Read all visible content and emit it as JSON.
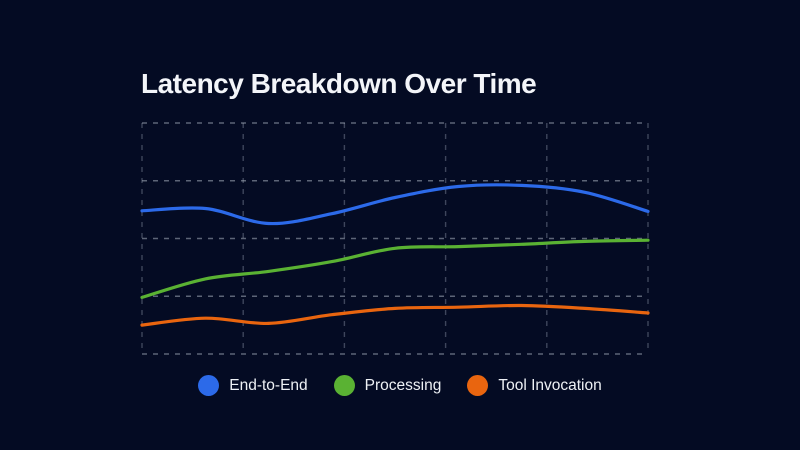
{
  "chart_data": {
    "type": "line",
    "title": "Latency Breakdown Over Time",
    "x": [
      1,
      2,
      3,
      4,
      5,
      6,
      7,
      8,
      9
    ],
    "xlabel": "",
    "ylabel": "",
    "x_tick_labels_visible": false,
    "y_tick_labels_visible": false,
    "ylim": [
      0,
      4
    ],
    "y_units": "gridline intervals (axis is unlabeled in the image)",
    "smoothing": true,
    "grid": {
      "visible": true,
      "line_style": "dashed",
      "vertical_lines": 6,
      "horizontal_lines": 5
    },
    "legend": {
      "position": "bottom",
      "marker": "circle"
    },
    "series": [
      {
        "name": "End-to-End",
        "color": "#2c6ae9",
        "values": [
          2.48,
          2.52,
          2.26,
          2.43,
          2.71,
          2.9,
          2.92,
          2.8,
          2.47
        ]
      },
      {
        "name": "Processing",
        "color": "#5ab233",
        "values": [
          0.98,
          1.3,
          1.43,
          1.6,
          1.83,
          1.86,
          1.9,
          1.95,
          1.97
        ]
      },
      {
        "name": "Tool Invocation",
        "color": "#e9650f",
        "values": [
          0.5,
          0.62,
          0.53,
          0.68,
          0.79,
          0.81,
          0.84,
          0.79,
          0.71
        ]
      }
    ],
    "colors": {
      "background": "#040b23",
      "title_text": "#f3f5f9",
      "legend_text": "#eef1f5",
      "grid_horizontal": "rgba(168,176,190,0.55)",
      "grid_vertical": "rgba(150,160,178,0.40)"
    }
  }
}
